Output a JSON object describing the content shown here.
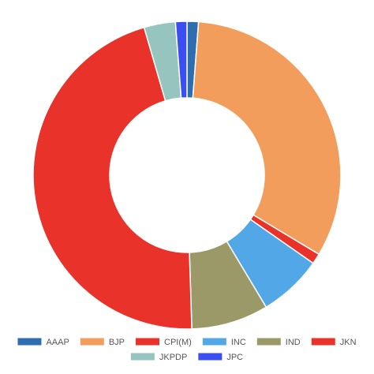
{
  "chart_data": {
    "type": "pie",
    "donut": true,
    "categories": [
      "AAAP",
      "BJP",
      "CPI(M)",
      "INC",
      "IND",
      "JKN",
      "JKPDP",
      "JPC"
    ],
    "values": [
      1.2,
      32.4,
      1.1,
      6.7,
      8.1,
      46.0,
      3.3,
      1.2
    ],
    "colors": [
      "#2e6db0",
      "#f29d5c",
      "#e8322a",
      "#52a8e6",
      "#9c9968",
      "#e8322a",
      "#96c4bf",
      "#3b4ef2"
    ],
    "legend_position": "bottom"
  }
}
